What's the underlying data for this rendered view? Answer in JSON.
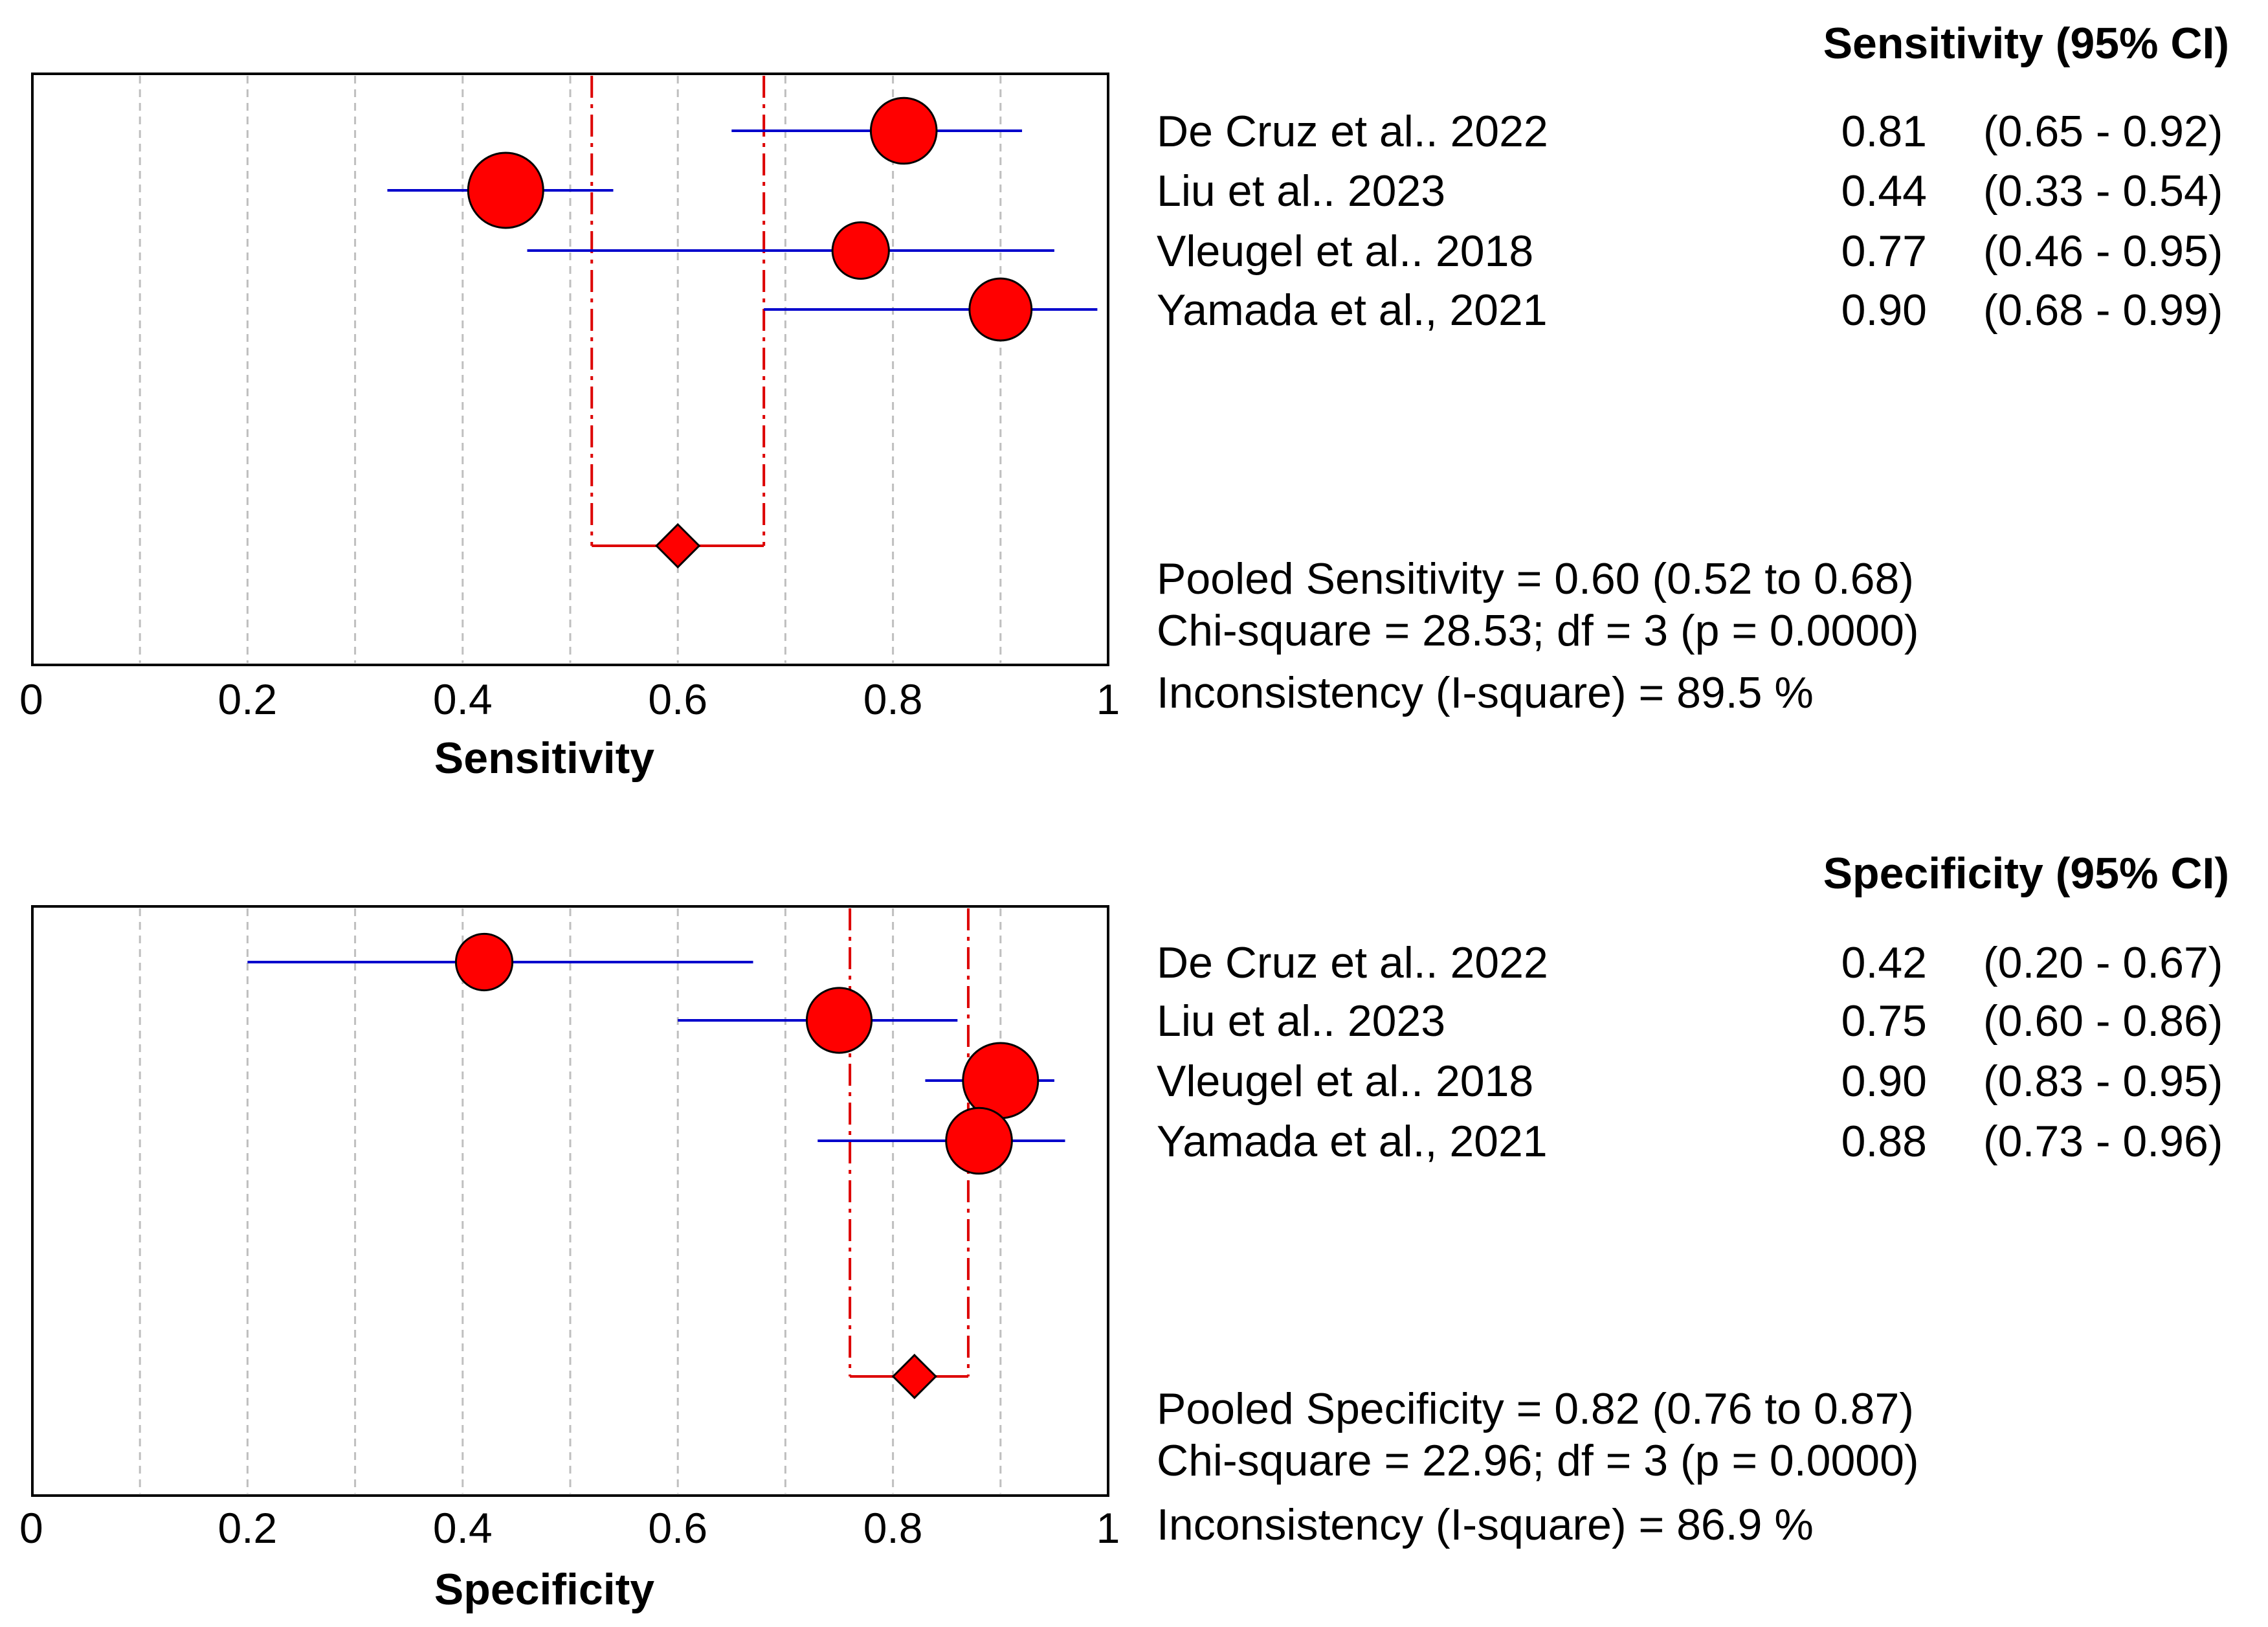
{
  "chart_data": [
    {
      "type": "forest",
      "xlabel": "Sensitivity",
      "header": "Sensitivity (95% CI)",
      "xlim": [
        0,
        1
      ],
      "xticks": [
        0,
        0.2,
        0.4,
        0.6,
        0.8,
        1
      ],
      "xtick_labels": [
        "0",
        "0.2",
        "0.4",
        "0.6",
        "0.8",
        "1"
      ],
      "gridlines": [
        0.1,
        0.2,
        0.3,
        0.4,
        0.5,
        0.6,
        0.7,
        0.8,
        0.9
      ],
      "studies": [
        {
          "name": "De Cruz et al.. 2022",
          "estimate": 0.81,
          "lower": 0.65,
          "upper": 0.92,
          "estimate_label": "0.81",
          "ci_label": "(0.65 - 0.92)",
          "weight": 0.8
        },
        {
          "name": "Liu et al.. 2023",
          "estimate": 0.44,
          "lower": 0.33,
          "upper": 0.54,
          "estimate_label": "0.44",
          "ci_label": "(0.33 - 0.54)",
          "weight": 1.0
        },
        {
          "name": "Vleugel et al.. 2018",
          "estimate": 0.77,
          "lower": 0.46,
          "upper": 0.95,
          "estimate_label": "0.77",
          "ci_label": "(0.46 - 0.95)",
          "weight": 0.6
        },
        {
          "name": "Yamada et al., 2021",
          "estimate": 0.9,
          "lower": 0.68,
          "upper": 0.99,
          "estimate_label": "0.90",
          "ci_label": "(0.68 - 0.99)",
          "weight": 0.72
        }
      ],
      "pooled": {
        "estimate": 0.6,
        "lower": 0.52,
        "upper": 0.68
      },
      "stats": [
        "Pooled Sensitivity = 0.60 (0.52 to 0.68)",
        "Chi-square = 28.53; df =  3 (p = 0.0000)",
        "Inconsistency (I-square) = 89.5 %"
      ]
    },
    {
      "type": "forest",
      "xlabel": "Specificity",
      "header": "Specificity (95% CI)",
      "xlim": [
        0,
        1
      ],
      "xticks": [
        0,
        0.2,
        0.4,
        0.6,
        0.8,
        1
      ],
      "xtick_labels": [
        "0",
        "0.2",
        "0.4",
        "0.6",
        "0.8",
        "1"
      ],
      "gridlines": [
        0.1,
        0.2,
        0.3,
        0.4,
        0.5,
        0.6,
        0.7,
        0.8,
        0.9
      ],
      "studies": [
        {
          "name": "De Cruz et al.. 2022",
          "estimate": 0.42,
          "lower": 0.2,
          "upper": 0.67,
          "estimate_label": "0.42",
          "ci_label": "(0.20 - 0.67)",
          "weight": 0.6
        },
        {
          "name": "Liu et al.. 2023",
          "estimate": 0.75,
          "lower": 0.6,
          "upper": 0.86,
          "estimate_label": "0.75",
          "ci_label": "(0.60 - 0.86)",
          "weight": 0.78
        },
        {
          "name": "Vleugel et al.. 2018",
          "estimate": 0.9,
          "lower": 0.83,
          "upper": 0.95,
          "estimate_label": "0.90",
          "ci_label": "(0.83 - 0.95)",
          "weight": 1.0
        },
        {
          "name": "Yamada et al., 2021",
          "estimate": 0.88,
          "lower": 0.73,
          "upper": 0.96,
          "estimate_label": "0.88",
          "ci_label": "(0.73 - 0.96)",
          "weight": 0.8
        }
      ],
      "pooled": {
        "estimate": 0.82,
        "lower": 0.76,
        "upper": 0.87
      },
      "stats": [
        "Pooled Specificity = 0.82 (0.76 to 0.87)",
        "Chi-square = 22.96; df =  3 (p = 0.0000)",
        "Inconsistency (I-square) = 86.9 %"
      ]
    }
  ],
  "colors": {
    "marker_fill": "#ff0000",
    "marker_stroke": "#000000",
    "ci_line": "#0000cc",
    "pooled_line": "#dd0000",
    "grid": "#bfbfbf",
    "axis": "#000000"
  }
}
